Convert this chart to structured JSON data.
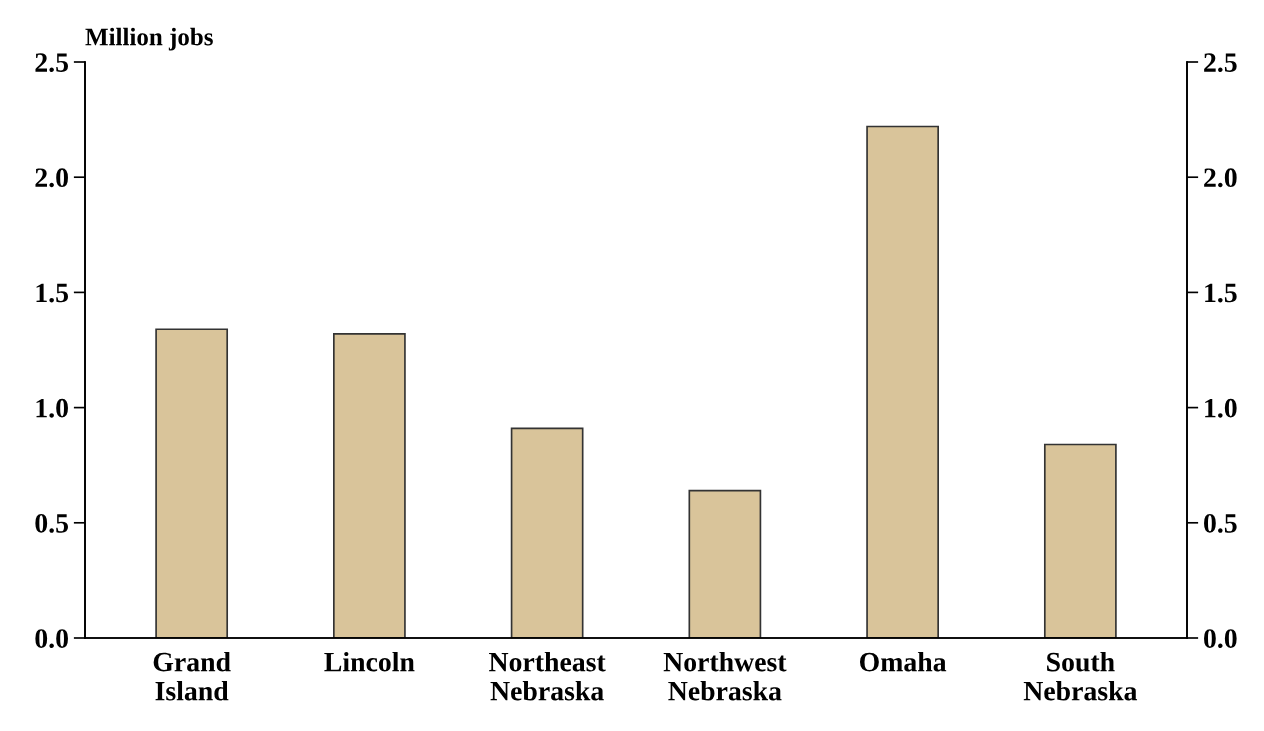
{
  "chart_data": {
    "type": "bar",
    "ylabel": "Million jobs",
    "categories": [
      "Grand\nIsland",
      "Lincoln",
      "Northeast\nNebraska",
      "Northwest\nNebraska",
      "Omaha",
      "South\nNebraska"
    ],
    "values": [
      1.34,
      1.32,
      0.91,
      0.64,
      2.22,
      0.84
    ],
    "color": "#d9c49a",
    "ylim": [
      0,
      2.5
    ],
    "yticks": [
      {
        "value": 0,
        "label": "0.0"
      },
      {
        "value": 0.5,
        "label": "0.5"
      },
      {
        "value": 1,
        "label": "1.0"
      },
      {
        "value": 1.5,
        "label": "1.5"
      },
      {
        "value": 2,
        "label": "2.0"
      },
      {
        "value": 2.5,
        "label": "2.5"
      }
    ],
    "y2lim": [
      0,
      2.5
    ],
    "y2ticks": [
      {
        "value": 0,
        "label": "0.0"
      },
      {
        "value": 0.5,
        "label": "0.5"
      },
      {
        "value": 1,
        "label": "1.0"
      },
      {
        "value": 1.5,
        "label": "1.5"
      },
      {
        "value": 2,
        "label": "2.0"
      },
      {
        "value": 2.5,
        "label": "2.5"
      }
    ],
    "grid": false,
    "legend": false
  }
}
